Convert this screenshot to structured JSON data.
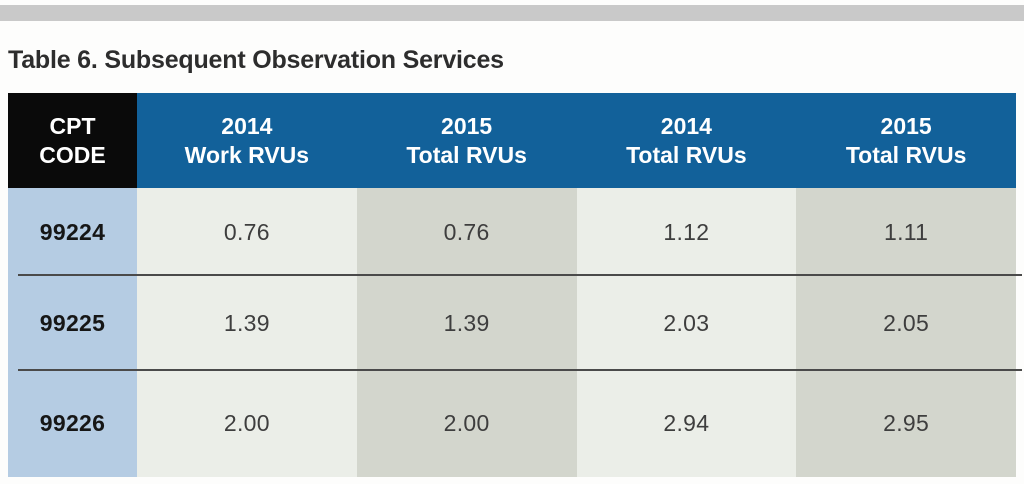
{
  "title": "Table 6. Subsequent Observation Services",
  "table": {
    "header": {
      "cpt_line1": "CPT",
      "cpt_line2": "CODE",
      "columns": [
        {
          "year": "2014",
          "metric": "Work RVUs"
        },
        {
          "year": "2015",
          "metric": "Total RVUs"
        },
        {
          "year": "2014",
          "metric": "Total RVUs"
        },
        {
          "year": "2015",
          "metric": "Total RVUs"
        }
      ]
    },
    "rows": [
      {
        "code": "99224",
        "values": [
          "0.76",
          "0.76",
          "1.12",
          "1.11"
        ]
      },
      {
        "code": "99225",
        "values": [
          "1.39",
          "1.39",
          "2.03",
          "2.05"
        ]
      },
      {
        "code": "99226",
        "values": [
          "2.00",
          "2.00",
          "2.94",
          "2.95"
        ]
      }
    ],
    "colors": {
      "header-bg": "#12619A",
      "cpt-header-bg": "#0A0A0A",
      "cpt-col-bg": "#B5CCE3",
      "col-light": "#EBEEE8",
      "col-dark": "#D3D6CD",
      "separator": "#4A4A4A",
      "top-bar": "#C9C9C9"
    }
  }
}
